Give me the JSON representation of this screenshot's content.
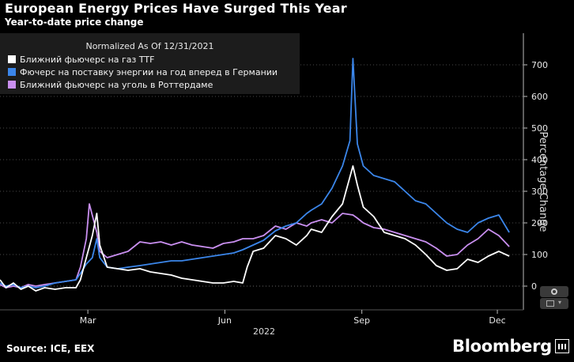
{
  "header": {
    "title": "European Energy Prices Have Surged This Year",
    "subtitle": "Year-to-date price change"
  },
  "legend": {
    "title": "Normalized As Of 12/31/2021",
    "items": [
      {
        "label": "Ближний фьючерс на газ TTF",
        "color": "#ffffff"
      },
      {
        "label": "Фючерс на поставку энергии на год вперед в Германии",
        "color": "#3b86ea"
      },
      {
        "label": "Ближний фьючерс на уголь в Роттердаме",
        "color": "#c98ff0"
      }
    ]
  },
  "footer": {
    "source": "Source: ICE, EEX",
    "brand": "Bloomberg"
  },
  "icons": [
    "settings-icon",
    "chart-type-icon",
    "bloomberg-logo-icon"
  ],
  "chart_data": {
    "type": "line",
    "title": "European Energy Prices Have Surged This Year",
    "subtitle": "Year-to-date price change",
    "xlabel": "2022",
    "ylabel": "Percentage Change",
    "x_ticks": [
      "Mar",
      "Jun",
      "Sep",
      "Dec"
    ],
    "y_ticks": [
      0,
      100,
      200,
      300,
      400,
      500,
      600,
      700
    ],
    "ylim": [
      -80,
      800
    ],
    "xlim": [
      "2022-01-01",
      "2022-12-10"
    ],
    "grid": true,
    "legend_position": "top-left",
    "series": [
      {
        "name": "Ближний фьючерс на газ TTF",
        "color": "#ffffff",
        "points": [
          [
            "2022-01-01",
            20
          ],
          [
            "2022-01-05",
            -5
          ],
          [
            "2022-01-10",
            10
          ],
          [
            "2022-01-15",
            -10
          ],
          [
            "2022-01-20",
            0
          ],
          [
            "2022-01-25",
            -15
          ],
          [
            "2022-01-31",
            -5
          ],
          [
            "2022-02-07",
            -10
          ],
          [
            "2022-02-14",
            -5
          ],
          [
            "2022-02-21",
            -5
          ],
          [
            "2022-02-24",
            20
          ],
          [
            "2022-02-28",
            90
          ],
          [
            "2022-03-04",
            160
          ],
          [
            "2022-03-07",
            230
          ],
          [
            "2022-03-09",
            130
          ],
          [
            "2022-03-14",
            60
          ],
          [
            "2022-03-21",
            55
          ],
          [
            "2022-03-28",
            50
          ],
          [
            "2022-04-05",
            55
          ],
          [
            "2022-04-12",
            45
          ],
          [
            "2022-04-19",
            40
          ],
          [
            "2022-04-26",
            35
          ],
          [
            "2022-05-03",
            25
          ],
          [
            "2022-05-10",
            20
          ],
          [
            "2022-05-17",
            15
          ],
          [
            "2022-05-24",
            10
          ],
          [
            "2022-05-31",
            10
          ],
          [
            "2022-06-07",
            15
          ],
          [
            "2022-06-13",
            10
          ],
          [
            "2022-06-16",
            60
          ],
          [
            "2022-06-20",
            110
          ],
          [
            "2022-06-27",
            120
          ],
          [
            "2022-07-05",
            160
          ],
          [
            "2022-07-12",
            150
          ],
          [
            "2022-07-19",
            130
          ],
          [
            "2022-07-26",
            160
          ],
          [
            "2022-07-29",
            180
          ],
          [
            "2022-08-05",
            170
          ],
          [
            "2022-08-12",
            220
          ],
          [
            "2022-08-19",
            260
          ],
          [
            "2022-08-26",
            380
          ],
          [
            "2022-08-29",
            320
          ],
          [
            "2022-09-02",
            250
          ],
          [
            "2022-09-09",
            220
          ],
          [
            "2022-09-16",
            170
          ],
          [
            "2022-09-23",
            160
          ],
          [
            "2022-09-30",
            150
          ],
          [
            "2022-10-07",
            130
          ],
          [
            "2022-10-14",
            100
          ],
          [
            "2022-10-21",
            65
          ],
          [
            "2022-10-28",
            50
          ],
          [
            "2022-11-04",
            55
          ],
          [
            "2022-11-11",
            85
          ],
          [
            "2022-11-18",
            75
          ],
          [
            "2022-11-25",
            95
          ],
          [
            "2022-12-02",
            110
          ],
          [
            "2022-12-09",
            95
          ]
        ]
      },
      {
        "name": "Фючерс на поставку энергии на год вперед в Германии",
        "color": "#3b86ea",
        "points": [
          [
            "2022-01-01",
            10
          ],
          [
            "2022-01-05",
            0
          ],
          [
            "2022-01-10",
            5
          ],
          [
            "2022-01-15",
            -5
          ],
          [
            "2022-01-20",
            0
          ],
          [
            "2022-01-25",
            -5
          ],
          [
            "2022-01-31",
            0
          ],
          [
            "2022-02-07",
            10
          ],
          [
            "2022-02-14",
            15
          ],
          [
            "2022-02-21",
            20
          ],
          [
            "2022-02-24",
            40
          ],
          [
            "2022-02-28",
            70
          ],
          [
            "2022-03-04",
            90
          ],
          [
            "2022-03-07",
            150
          ],
          [
            "2022-03-09",
            90
          ],
          [
            "2022-03-14",
            60
          ],
          [
            "2022-03-21",
            55
          ],
          [
            "2022-03-28",
            60
          ],
          [
            "2022-04-05",
            65
          ],
          [
            "2022-04-12",
            70
          ],
          [
            "2022-04-19",
            75
          ],
          [
            "2022-04-26",
            80
          ],
          [
            "2022-05-03",
            80
          ],
          [
            "2022-05-10",
            85
          ],
          [
            "2022-05-17",
            90
          ],
          [
            "2022-05-24",
            95
          ],
          [
            "2022-05-31",
            100
          ],
          [
            "2022-06-07",
            105
          ],
          [
            "2022-06-13",
            115
          ],
          [
            "2022-06-20",
            130
          ],
          [
            "2022-06-27",
            145
          ],
          [
            "2022-07-05",
            175
          ],
          [
            "2022-07-12",
            190
          ],
          [
            "2022-07-19",
            200
          ],
          [
            "2022-07-26",
            230
          ],
          [
            "2022-07-29",
            240
          ],
          [
            "2022-08-05",
            260
          ],
          [
            "2022-08-12",
            310
          ],
          [
            "2022-08-19",
            380
          ],
          [
            "2022-08-24",
            460
          ],
          [
            "2022-08-26",
            720
          ],
          [
            "2022-08-29",
            450
          ],
          [
            "2022-09-02",
            380
          ],
          [
            "2022-09-09",
            350
          ],
          [
            "2022-09-16",
            340
          ],
          [
            "2022-09-23",
            330
          ],
          [
            "2022-09-30",
            300
          ],
          [
            "2022-10-07",
            270
          ],
          [
            "2022-10-14",
            260
          ],
          [
            "2022-10-21",
            230
          ],
          [
            "2022-10-28",
            200
          ],
          [
            "2022-11-04",
            180
          ],
          [
            "2022-11-11",
            170
          ],
          [
            "2022-11-18",
            200
          ],
          [
            "2022-11-25",
            215
          ],
          [
            "2022-12-02",
            225
          ],
          [
            "2022-12-09",
            170
          ]
        ]
      },
      {
        "name": "Ближний фьючерс на уголь в Роттердаме",
        "color": "#c98ff0",
        "points": [
          [
            "2022-01-01",
            5
          ],
          [
            "2022-01-05",
            -5
          ],
          [
            "2022-01-10",
            0
          ],
          [
            "2022-01-15",
            -5
          ],
          [
            "2022-01-20",
            5
          ],
          [
            "2022-01-25",
            0
          ],
          [
            "2022-01-31",
            5
          ],
          [
            "2022-02-07",
            10
          ],
          [
            "2022-02-14",
            15
          ],
          [
            "2022-02-21",
            20
          ],
          [
            "2022-02-24",
            60
          ],
          [
            "2022-02-28",
            150
          ],
          [
            "2022-03-02",
            260
          ],
          [
            "2022-03-07",
            170
          ],
          [
            "2022-03-09",
            110
          ],
          [
            "2022-03-14",
            90
          ],
          [
            "2022-03-21",
            100
          ],
          [
            "2022-03-28",
            110
          ],
          [
            "2022-04-05",
            140
          ],
          [
            "2022-04-12",
            135
          ],
          [
            "2022-04-19",
            140
          ],
          [
            "2022-04-26",
            130
          ],
          [
            "2022-05-03",
            140
          ],
          [
            "2022-05-10",
            130
          ],
          [
            "2022-05-17",
            125
          ],
          [
            "2022-05-24",
            120
          ],
          [
            "2022-05-31",
            135
          ],
          [
            "2022-06-07",
            140
          ],
          [
            "2022-06-13",
            150
          ],
          [
            "2022-06-20",
            150
          ],
          [
            "2022-06-27",
            160
          ],
          [
            "2022-07-05",
            190
          ],
          [
            "2022-07-12",
            180
          ],
          [
            "2022-07-19",
            200
          ],
          [
            "2022-07-26",
            190
          ],
          [
            "2022-07-29",
            200
          ],
          [
            "2022-08-05",
            210
          ],
          [
            "2022-08-12",
            200
          ],
          [
            "2022-08-19",
            230
          ],
          [
            "2022-08-26",
            225
          ],
          [
            "2022-08-29",
            215
          ],
          [
            "2022-09-02",
            200
          ],
          [
            "2022-09-09",
            185
          ],
          [
            "2022-09-16",
            180
          ],
          [
            "2022-09-23",
            170
          ],
          [
            "2022-09-30",
            160
          ],
          [
            "2022-10-07",
            150
          ],
          [
            "2022-10-14",
            140
          ],
          [
            "2022-10-21",
            120
          ],
          [
            "2022-10-28",
            95
          ],
          [
            "2022-11-04",
            100
          ],
          [
            "2022-11-11",
            130
          ],
          [
            "2022-11-18",
            150
          ],
          [
            "2022-11-25",
            180
          ],
          [
            "2022-12-02",
            160
          ],
          [
            "2022-12-09",
            125
          ]
        ]
      }
    ]
  }
}
